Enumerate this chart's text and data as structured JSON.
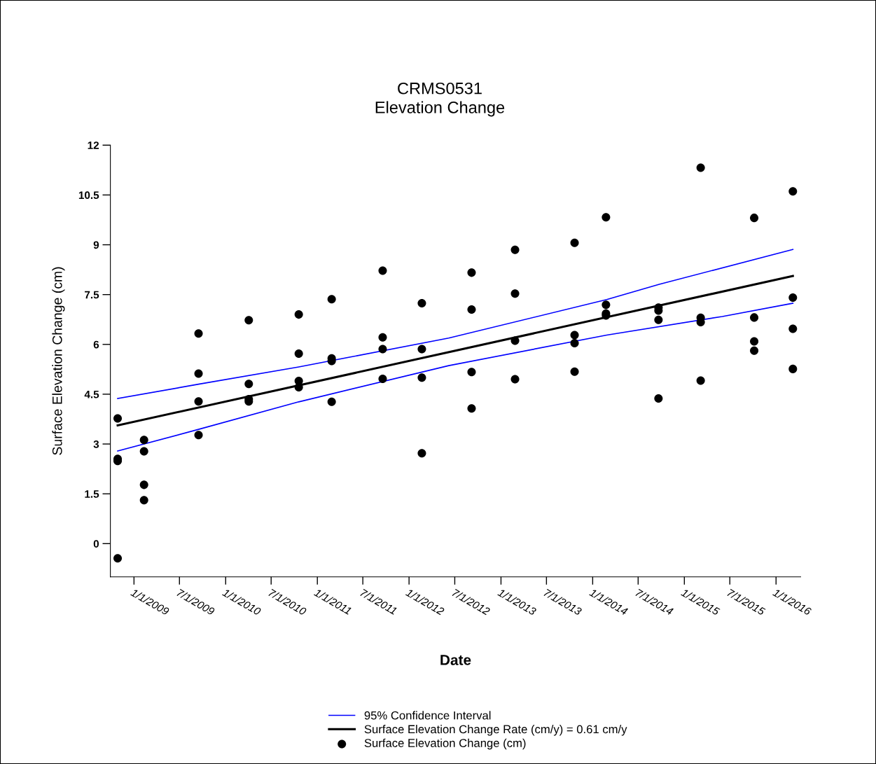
{
  "chart_data": {
    "type": "scatter",
    "title": "CRMS0531\nElevation Change",
    "xlabel": "Date",
    "ylabel": "Surface Elevation Change (cm)",
    "xlim": [
      "2008-09-29",
      "2016-04-08"
    ],
    "ylim": [
      -1,
      12
    ],
    "xticks": [
      {
        "value": "2009-01-01",
        "label": "1/1/2009"
      },
      {
        "value": "2009-07-01",
        "label": "7/1/2009"
      },
      {
        "value": "2010-01-01",
        "label": "1/1/2010"
      },
      {
        "value": "2010-07-01",
        "label": "7/1/2010"
      },
      {
        "value": "2011-01-01",
        "label": "1/1/2011"
      },
      {
        "value": "2011-07-01",
        "label": "7/1/2011"
      },
      {
        "value": "2012-01-01",
        "label": "1/1/2012"
      },
      {
        "value": "2012-07-01",
        "label": "7/1/2012"
      },
      {
        "value": "2013-01-01",
        "label": "1/1/2013"
      },
      {
        "value": "2013-07-01",
        "label": "7/1/2013"
      },
      {
        "value": "2014-01-01",
        "label": "1/1/2014"
      },
      {
        "value": "2014-07-01",
        "label": "7/1/2014"
      },
      {
        "value": "2015-01-01",
        "label": "1/1/2015"
      },
      {
        "value": "2015-07-01",
        "label": "7/1/2015"
      },
      {
        "value": "2016-01-01",
        "label": "1/1/2016"
      }
    ],
    "yticks": [
      0,
      1.5,
      3,
      4.5,
      6,
      7.5,
      9,
      10.5,
      12
    ],
    "grid": false,
    "legend": "bottom",
    "series": [
      {
        "name": "95% Confidence Interval",
        "type": "line",
        "color": "#0000ff",
        "line_style": "solid",
        "marker": "none",
        "x": [
          "2008-10-28",
          "2009-09-15",
          "2010-10-19",
          "2012-06-07",
          "2014-02-26",
          "2014-09-23",
          "2016-03-08"
        ],
        "values": [
          4.37,
          4.8,
          5.32,
          6.19,
          7.35,
          7.81,
          8.86
        ]
      },
      {
        "type": "line",
        "color": "#0000ff",
        "line_style": "solid",
        "marker": "none",
        "x": [
          "2008-10-28",
          "2009-09-15",
          "2010-10-19",
          "2012-06-07",
          "2014-02-26",
          "2015-06-01",
          "2016-03-08"
        ],
        "values": [
          2.79,
          3.44,
          4.27,
          5.36,
          6.28,
          6.84,
          7.24
        ]
      },
      {
        "name": "Surface Elevation Change Rate (cm/y) = 0.61 cm/y",
        "type": "line",
        "color": "#000000",
        "line_style": "solid",
        "marker": "none",
        "x": [
          "2008-10-28",
          "2016-03-08"
        ],
        "values": [
          3.56,
          8.06
        ]
      },
      {
        "name": "Surface Elevation Change (cm)",
        "color": "#000000",
        "marker": "circle",
        "x": [
          "2008-10-28",
          "2008-10-28",
          "2008-10-28",
          "2008-10-28",
          "2009-02-10",
          "2009-02-10",
          "2009-02-10",
          "2009-02-10",
          "2009-09-15",
          "2009-09-15",
          "2009-09-15",
          "2009-09-15",
          "2010-04-03",
          "2010-04-03",
          "2010-04-03",
          "2010-04-03",
          "2010-10-19",
          "2010-10-19",
          "2010-10-19",
          "2010-10-19",
          "2011-02-27",
          "2011-02-27",
          "2011-02-27",
          "2011-02-27",
          "2011-09-18",
          "2011-09-18",
          "2011-09-18",
          "2011-09-18",
          "2012-02-21",
          "2012-02-21",
          "2012-02-21",
          "2012-02-21",
          "2012-09-06",
          "2012-09-06",
          "2012-09-06",
          "2012-09-06",
          "2013-02-26",
          "2013-02-26",
          "2013-02-26",
          "2013-02-26",
          "2013-10-21",
          "2013-10-21",
          "2013-10-21",
          "2013-10-21",
          "2014-02-23",
          "2014-02-23",
          "2014-02-23",
          "2014-02-23",
          "2014-09-20",
          "2014-09-20",
          "2014-09-20",
          "2014-09-20",
          "2015-03-07",
          "2015-03-07",
          "2015-03-07",
          "2015-03-07",
          "2015-10-06",
          "2015-10-06",
          "2015-10-06",
          "2015-10-06",
          "2016-03-08",
          "2016-03-08",
          "2016-03-08",
          "2016-03-08"
        ],
        "values": [
          3.77,
          2.55,
          2.49,
          -0.44,
          3.12,
          2.78,
          1.77,
          1.31,
          6.33,
          5.12,
          4.28,
          3.27,
          6.73,
          4.81,
          4.35,
          4.28,
          6.9,
          5.72,
          4.9,
          4.71,
          7.36,
          5.58,
          5.5,
          4.27,
          8.22,
          6.21,
          5.86,
          4.96,
          7.24,
          5.86,
          5.0,
          2.72,
          8.16,
          7.05,
          5.17,
          4.07,
          8.85,
          7.53,
          6.11,
          4.95,
          9.06,
          6.28,
          6.04,
          5.18,
          9.83,
          7.19,
          6.93,
          6.87,
          7.11,
          7.02,
          6.74,
          4.37,
          11.32,
          6.8,
          6.67,
          4.91,
          9.81,
          6.81,
          6.09,
          5.81,
          10.61,
          7.41,
          6.47,
          5.26
        ]
      }
    ]
  }
}
